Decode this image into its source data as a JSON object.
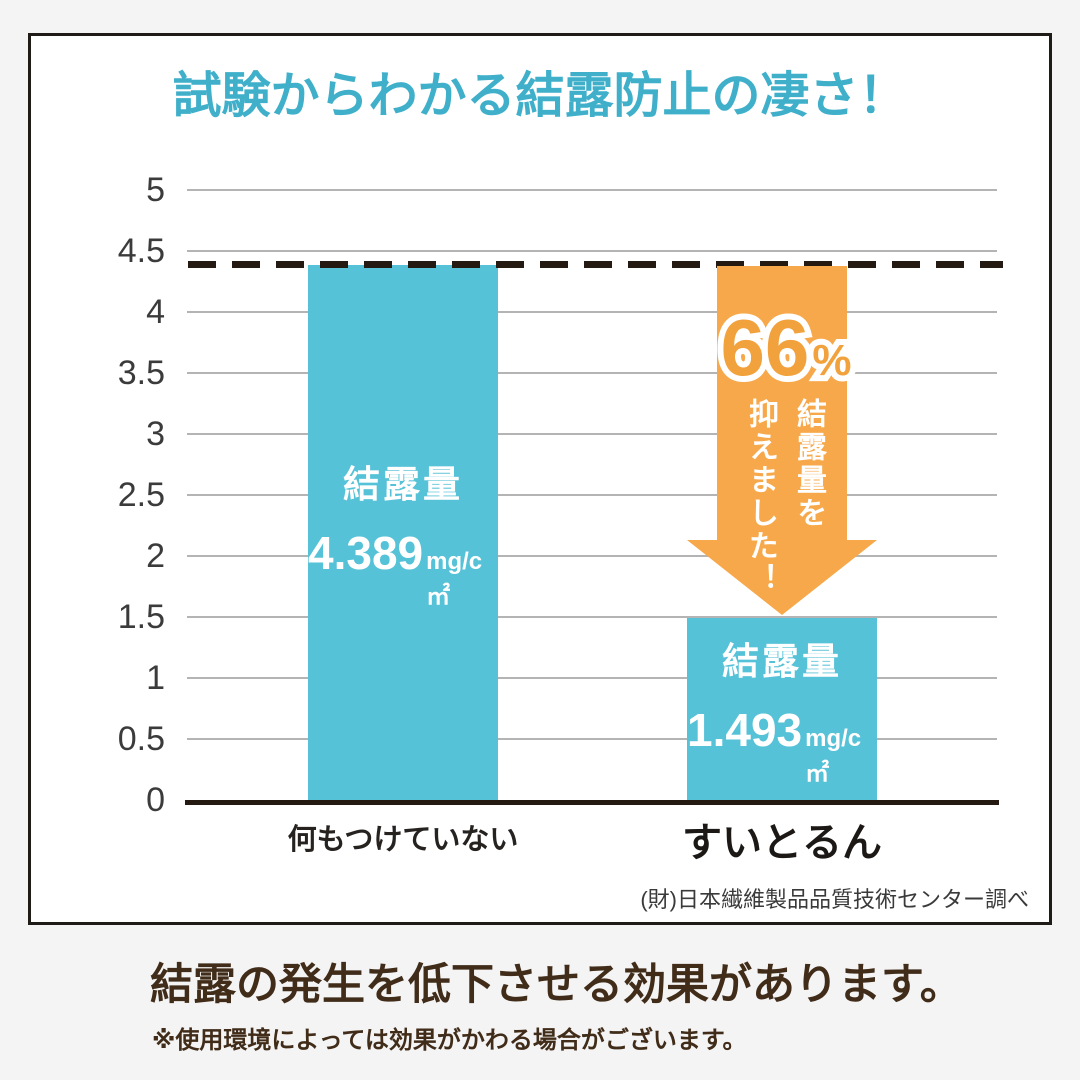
{
  "colors": {
    "page_background": "#f4f4f5",
    "card_background": "#ffffff",
    "card_border": "#1f1b17",
    "title_teal": "#3fafca",
    "bar_teal": "#56c2d7",
    "arrow_orange": "#f6a84a",
    "percent_orange": "#f2a23d",
    "grid_gray": "#b4b4b4",
    "ink_dark": "#241a12",
    "footer_brown": "#402c18"
  },
  "card": {
    "title_color": "#3fafca",
    "source_note": "(財)日本繊維製品品質技術センター調べ"
  },
  "chart_data": {
    "type": "bar",
    "title": "試験からわかる結露防止の凄さ！",
    "categories": [
      "何もつけていない",
      "すいとるん"
    ],
    "values": [
      4.389,
      1.493
    ],
    "unit": "mg/cm2",
    "ylim": [
      0,
      5
    ],
    "ytick_step": 0.5,
    "yticks": [
      "5",
      "4.5",
      "4",
      "3.5",
      "3",
      "2.5",
      "2",
      "1.5",
      "1",
      "0.5",
      "0"
    ],
    "grid": true,
    "bar_color": "#56c2d7",
    "reference_line": {
      "value": 4.389,
      "style": "dashed",
      "color": "#241a12"
    },
    "bars": [
      {
        "label": "結露量",
        "value_display": "4.389",
        "unit_display": "mg/c㎡"
      },
      {
        "label": "結露量",
        "value_display": "1.493",
        "unit_display": "mg/c㎡"
      }
    ],
    "annotation": {
      "percent": "66",
      "percent_sign": "%",
      "percent_color": "#f2a23d",
      "arrow_color": "#f6a84a",
      "text": "結露量を抑えました！",
      "lines": [
        "結露量を",
        "抑えました！"
      ]
    }
  },
  "footer": {
    "headline": "結露の発生を低下させる効果があります。",
    "note": "※使用環境によっては効果がかわる場合がございます。"
  }
}
